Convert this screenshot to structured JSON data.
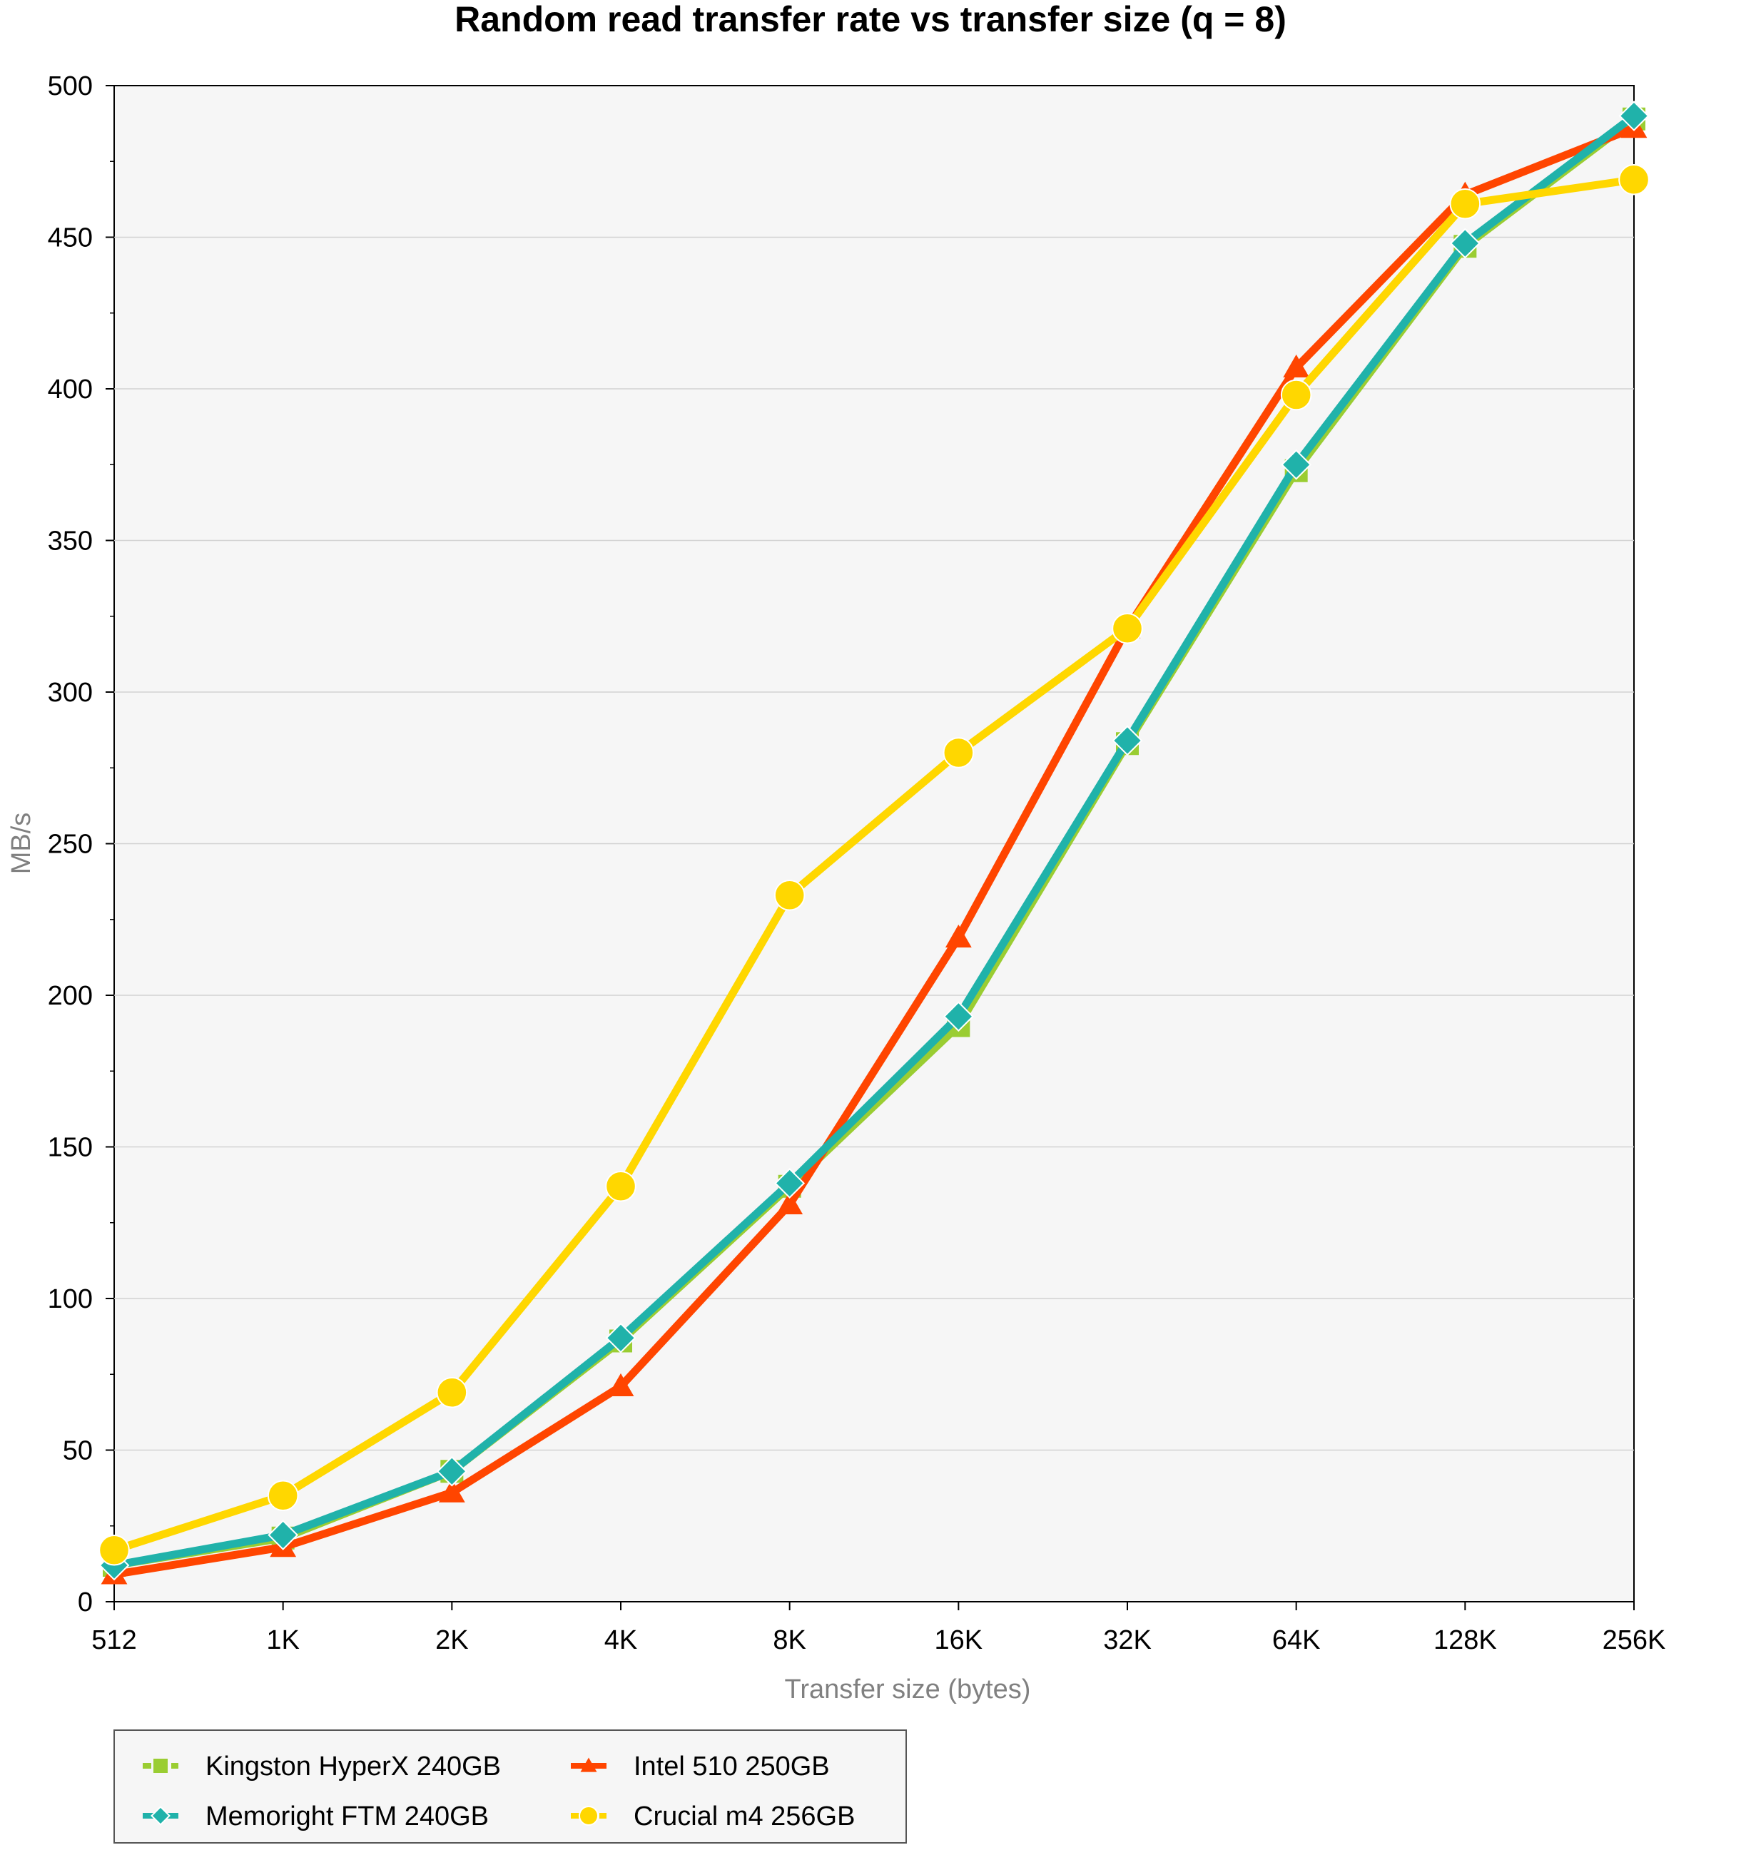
{
  "chart_data": {
    "type": "line",
    "title": "Random read transfer rate vs transfer size (q = 8)",
    "xlabel": "Transfer size (bytes)",
    "ylabel": "MB/s",
    "categories": [
      "512",
      "1K",
      "2K",
      "4K",
      "8K",
      "16K",
      "32K",
      "64K",
      "128K",
      "256K"
    ],
    "ylim": [
      0,
      500
    ],
    "yticks": [
      0,
      50,
      100,
      150,
      200,
      250,
      300,
      350,
      400,
      450,
      500
    ],
    "grid": true,
    "legend_position": "bottom-left",
    "series": [
      {
        "name": "Kingston HyperX 240GB",
        "color": "#9acd32",
        "marker": "square",
        "dashed_legend": true,
        "values": [
          12,
          21,
          43,
          86,
          137,
          190,
          283,
          373,
          447,
          489
        ]
      },
      {
        "name": "Intel 510 250GB",
        "color": "#ff4500",
        "marker": "triangle",
        "dashed_legend": false,
        "values": [
          9,
          18,
          36,
          71,
          131,
          219,
          321,
          407,
          464,
          486
        ]
      },
      {
        "name": "Memoright FTM 240GB",
        "color": "#20b2aa",
        "marker": "diamond",
        "dashed_legend": false,
        "values": [
          12,
          22,
          43,
          87,
          138,
          193,
          284,
          375,
          448,
          490
        ]
      },
      {
        "name": "Crucial m4 256GB",
        "color": "#ffd700",
        "marker": "circle",
        "dashed_legend": true,
        "values": [
          17,
          35,
          69,
          137,
          233,
          280,
          321,
          398,
          461,
          469
        ]
      }
    ]
  }
}
